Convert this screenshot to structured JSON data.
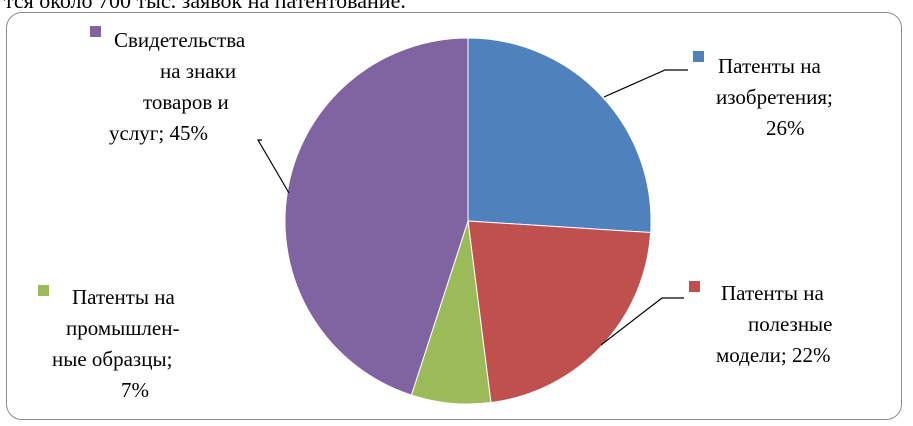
{
  "header": {
    "text": "тся около 700 тыс. заявок на патентование."
  },
  "chart_data": {
    "type": "pie",
    "title": "",
    "slices": [
      {
        "key": "inventions",
        "label_lines": [
          "Патенты на",
          "изобретения;",
          "26%"
        ],
        "value": 26,
        "color": "#4F81BD"
      },
      {
        "key": "utility",
        "label_lines": [
          "Патенты на",
          "полезные",
          "модели; 22%"
        ],
        "value": 22,
        "color": "#C0504D"
      },
      {
        "key": "designs",
        "label_lines": [
          "Патенты на",
          "промышлен-",
          "ные образцы;",
          "7%"
        ],
        "value": 7,
        "color": "#9BBB59"
      },
      {
        "key": "trademarks",
        "label_lines": [
          "Свидетельства",
          "на знаки",
          "товаров и",
          "услуг; 45%"
        ],
        "value": 45,
        "color": "#8064A2"
      }
    ]
  }
}
